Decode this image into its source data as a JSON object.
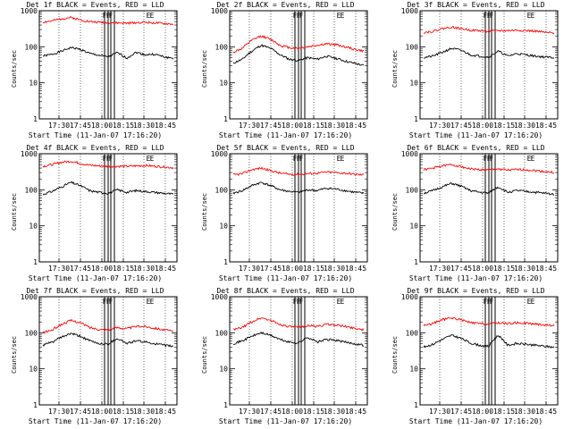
{
  "chart_data": [
    {
      "type": "line",
      "title": "Det 1f BLACK = Events, RED = LLD",
      "xlabel": "Start Time (11-Jan-07 17:16:20)",
      "ylabel": "Counts/sec",
      "yscale": "log",
      "ylim": [
        1,
        1000
      ],
      "xticks": [
        "17:30",
        "17:45",
        "18:00",
        "18:15",
        "18:30",
        "18:45"
      ],
      "yticks": [
        "1",
        "10",
        "100",
        "1000"
      ],
      "flags": [
        "F",
        "F",
        "F",
        "E",
        "E"
      ],
      "series": [
        {
          "name": "Events",
          "color": "#000000",
          "values": [
            55,
            62,
            75,
            95,
            85,
            65,
            58,
            52,
            68,
            48,
            70,
            60,
            62,
            52,
            48
          ]
        },
        {
          "name": "LLD",
          "color": "#ff0000",
          "values": [
            480,
            520,
            600,
            650,
            560,
            500,
            480,
            470,
            460,
            450,
            470,
            480,
            460,
            440,
            420
          ]
        }
      ]
    },
    {
      "type": "line",
      "title": "Det 2f BLACK = Events, RED = LLD",
      "xlabel": "Start Time (11-Jan-07 17:16:20)",
      "ylabel": "Counts/sec",
      "yscale": "log",
      "ylim": [
        1,
        1000
      ],
      "xticks": [
        "17:30",
        "17:45",
        "18:00",
        "18:15",
        "18:30",
        "18:45"
      ],
      "yticks": [
        "1",
        "10",
        "100",
        "1000"
      ],
      "flags": [
        "F",
        "F",
        "F",
        "E",
        "E"
      ],
      "series": [
        {
          "name": "Events",
          "color": "#000000",
          "values": [
            35,
            45,
            75,
            110,
            90,
            60,
            45,
            42,
            50,
            45,
            55,
            48,
            40,
            35,
            30
          ]
        },
        {
          "name": "LLD",
          "color": "#ff0000",
          "values": [
            70,
            90,
            150,
            200,
            160,
            110,
            95,
            90,
            100,
            110,
            120,
            115,
            100,
            85,
            75
          ]
        }
      ]
    },
    {
      "type": "line",
      "title": "Det 3f BLACK = Events, RED = LLD",
      "xlabel": "Start Time (11-Jan-07 17:16:20)",
      "ylabel": "Counts/sec",
      "yscale": "log",
      "ylim": [
        1,
        1000
      ],
      "xticks": [
        "17:30",
        "17:45",
        "18:00",
        "18:15",
        "18:30",
        "18:45"
      ],
      "yticks": [
        "1",
        "10",
        "100",
        "1000"
      ],
      "flags": [
        "F",
        "F",
        "F",
        "E",
        "E"
      ],
      "series": [
        {
          "name": "Events",
          "color": "#000000",
          "values": [
            50,
            55,
            70,
            90,
            80,
            60,
            55,
            52,
            75,
            55,
            65,
            60,
            55,
            52,
            50
          ]
        },
        {
          "name": "LLD",
          "color": "#ff0000",
          "values": [
            250,
            270,
            320,
            350,
            320,
            290,
            280,
            270,
            280,
            280,
            290,
            280,
            270,
            250,
            240
          ]
        }
      ]
    },
    {
      "type": "line",
      "title": "Det 4f BLACK = Events, RED = LLD",
      "xlabel": "Start Time (11-Jan-07 17:16:20)",
      "ylabel": "Counts/sec",
      "yscale": "log",
      "ylim": [
        1,
        1000
      ],
      "xticks": [
        "17:30",
        "17:45",
        "18:00",
        "18:15",
        "18:30",
        "18:45"
      ],
      "yticks": [
        "1",
        "10",
        "100",
        "1000"
      ],
      "flags": [
        "F",
        "F",
        "F",
        "E",
        "E"
      ],
      "series": [
        {
          "name": "Events",
          "color": "#000000",
          "values": [
            75,
            90,
            120,
            160,
            130,
            95,
            85,
            80,
            100,
            85,
            95,
            90,
            85,
            80,
            75
          ]
        },
        {
          "name": "LLD",
          "color": "#ff0000",
          "values": [
            450,
            500,
            580,
            620,
            540,
            480,
            460,
            450,
            450,
            450,
            460,
            470,
            450,
            430,
            410
          ]
        }
      ]
    },
    {
      "type": "line",
      "title": "Det 5f BLACK = Events, RED = LLD",
      "xlabel": "Start Time (11-Jan-07 17:16:20)",
      "ylabel": "Counts/sec",
      "yscale": "log",
      "ylim": [
        1,
        1000
      ],
      "xticks": [
        "17:30",
        "17:45",
        "18:00",
        "18:15",
        "18:30",
        "18:45"
      ],
      "yticks": [
        "1",
        "10",
        "100",
        "1000"
      ],
      "flags": [
        "F",
        "F",
        "F",
        "E",
        "E"
      ],
      "series": [
        {
          "name": "Events",
          "color": "#000000",
          "values": [
            80,
            95,
            130,
            160,
            130,
            100,
            90,
            85,
            100,
            95,
            110,
            105,
            95,
            85,
            80
          ]
        },
        {
          "name": "LLD",
          "color": "#ff0000",
          "values": [
            260,
            280,
            360,
            400,
            340,
            290,
            270,
            270,
            280,
            290,
            310,
            300,
            290,
            270,
            260
          ]
        }
      ]
    },
    {
      "type": "line",
      "title": "Det 6f BLACK = Events, RED = LLD",
      "xlabel": "Start Time (11-Jan-07 17:16:20)",
      "ylabel": "Counts/sec",
      "yscale": "log",
      "ylim": [
        1,
        1000
      ],
      "xticks": [
        "17:30",
        "17:45",
        "18:00",
        "18:15",
        "18:30",
        "18:45"
      ],
      "yticks": [
        "1",
        "10",
        "100",
        "1000"
      ],
      "flags": [
        "F",
        "F",
        "F",
        "E",
        "E"
      ],
      "series": [
        {
          "name": "Events",
          "color": "#000000",
          "values": [
            80,
            95,
            120,
            150,
            125,
            95,
            85,
            80,
            120,
            85,
            95,
            90,
            85,
            80,
            75
          ]
        },
        {
          "name": "LLD",
          "color": "#ff0000",
          "values": [
            360,
            400,
            460,
            500,
            440,
            380,
            360,
            350,
            380,
            350,
            360,
            360,
            340,
            320,
            300
          ]
        }
      ]
    },
    {
      "type": "line",
      "title": "Det 7f BLACK = Events, RED = LLD",
      "xlabel": "Start Time (11-Jan-07 17:16:20)",
      "ylabel": "Counts/sec",
      "yscale": "log",
      "ylim": [
        1,
        1000
      ],
      "xticks": [
        "17:30",
        "17:45",
        "18:00",
        "18:15",
        "18:30",
        "18:45"
      ],
      "yticks": [
        "1",
        "10",
        "100",
        "1000"
      ],
      "flags": [
        "F",
        "F",
        "F",
        "E",
        "E"
      ],
      "series": [
        {
          "name": "Events",
          "color": "#000000",
          "values": [
            45,
            55,
            75,
            95,
            80,
            60,
            50,
            48,
            70,
            50,
            60,
            55,
            50,
            45,
            42
          ]
        },
        {
          "name": "LLD",
          "color": "#ff0000",
          "values": [
            100,
            120,
            170,
            220,
            190,
            140,
            125,
            120,
            140,
            130,
            150,
            150,
            135,
            120,
            110
          ]
        }
      ]
    },
    {
      "type": "line",
      "title": "Det 8f BLACK = Events, RED = LLD",
      "xlabel": "Start Time (11-Jan-07 17:16:20)",
      "ylabel": "Counts/sec",
      "yscale": "log",
      "ylim": [
        1,
        1000
      ],
      "xticks": [
        "17:30",
        "17:45",
        "18:00",
        "18:15",
        "18:30",
        "18:45"
      ],
      "yticks": [
        "1",
        "10",
        "100",
        "1000"
      ],
      "flags": [
        "F",
        "F",
        "F",
        "E",
        "E"
      ],
      "series": [
        {
          "name": "Events",
          "color": "#000000",
          "values": [
            50,
            60,
            80,
            100,
            85,
            65,
            55,
            52,
            75,
            55,
            65,
            62,
            55,
            50,
            45
          ]
        },
        {
          "name": "LLD",
          "color": "#ff0000",
          "values": [
            120,
            140,
            200,
            260,
            220,
            170,
            150,
            140,
            160,
            150,
            170,
            165,
            150,
            135,
            120
          ]
        }
      ]
    },
    {
      "type": "line",
      "title": "Det 9f BLACK = Events, RED = LLD",
      "xlabel": "Start Time (11-Jan-07 17:16:20)",
      "ylabel": "Counts/sec",
      "yscale": "log",
      "ylim": [
        1,
        1000
      ],
      "xticks": [
        "17:30",
        "17:45",
        "18:00",
        "18:15",
        "18:30",
        "18:45"
      ],
      "yticks": [
        "1",
        "10",
        "100",
        "1000"
      ],
      "flags": [
        "F",
        "F",
        "F",
        "E",
        "E"
      ],
      "series": [
        {
          "name": "Events",
          "color": "#000000",
          "values": [
            40,
            48,
            65,
            85,
            70,
            52,
            45,
            42,
            85,
            45,
            50,
            48,
            45,
            42,
            40
          ]
        },
        {
          "name": "LLD",
          "color": "#ff0000",
          "values": [
            160,
            180,
            230,
            260,
            230,
            190,
            180,
            175,
            190,
            180,
            190,
            185,
            175,
            165,
            160
          ]
        }
      ]
    }
  ]
}
